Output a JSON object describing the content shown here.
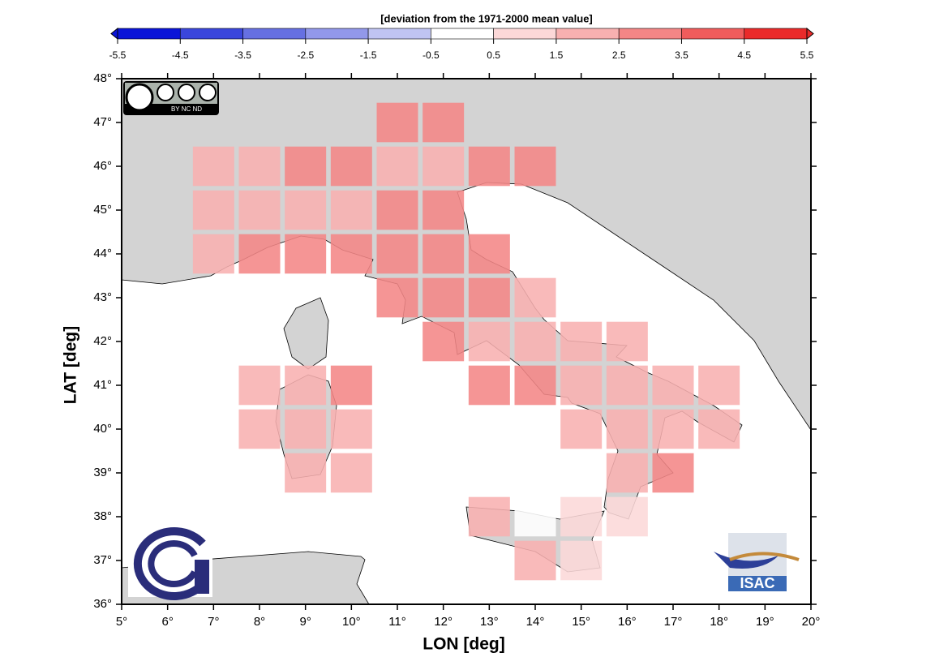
{
  "chart_data": {
    "type": "grid-map",
    "title": "[deviation from the 1971-2000 mean value]",
    "x_label": "LON [deg]",
    "y_label": "LAT [deg]",
    "xlim": [
      5,
      20
    ],
    "ylim": [
      36,
      48
    ],
    "xticks": [
      {
        "value": 5,
        "label": "5°"
      },
      {
        "value": 6,
        "label": "6°"
      },
      {
        "value": 7,
        "label": "7°"
      },
      {
        "value": 8,
        "label": "8°"
      },
      {
        "value": 9,
        "label": "9°"
      },
      {
        "value": 10,
        "label": "10°"
      },
      {
        "value": 11,
        "label": "11°"
      },
      {
        "value": 12,
        "label": "12°"
      },
      {
        "value": 13,
        "label": "13°"
      },
      {
        "value": 14,
        "label": "14°"
      },
      {
        "value": 15,
        "label": "15°"
      },
      {
        "value": 16,
        "label": "16°"
      },
      {
        "value": 17,
        "label": "17°"
      },
      {
        "value": 18,
        "label": "18°"
      },
      {
        "value": 19,
        "label": "19°"
      },
      {
        "value": 20,
        "label": "20°"
      }
    ],
    "yticks": [
      {
        "value": 36,
        "label": "36°"
      },
      {
        "value": 37,
        "label": "37°"
      },
      {
        "value": 38,
        "label": "38°"
      },
      {
        "value": 39,
        "label": "39°"
      },
      {
        "value": 40,
        "label": "40°"
      },
      {
        "value": 41,
        "label": "41°"
      },
      {
        "value": 42,
        "label": "42°"
      },
      {
        "value": 43,
        "label": "43°"
      },
      {
        "value": 44,
        "label": "44°"
      },
      {
        "value": 45,
        "label": "45°"
      },
      {
        "value": 46,
        "label": "46°"
      },
      {
        "value": 47,
        "label": "47°"
      },
      {
        "value": 48,
        "label": "48°"
      }
    ],
    "colorbar": {
      "ticks": [
        -5.5,
        -4.5,
        -3.5,
        -2.5,
        -1.5,
        -0.5,
        0.5,
        1.5,
        2.5,
        3.5,
        4.5,
        5.5
      ],
      "colors": [
        "#0a14d8",
        "#3a46dc",
        "#6670e2",
        "#9298ea",
        "#c0c4f2",
        "#ffffff",
        "#fcd8d8",
        "#f8b0b0",
        "#f48686",
        "#f05c5c",
        "#ea2a2a"
      ]
    },
    "cells": [
      {
        "lon": 11,
        "lat": 47,
        "value": 3
      },
      {
        "lon": 12,
        "lat": 47,
        "value": 3
      },
      {
        "lon": 7,
        "lat": 46,
        "value": 2
      },
      {
        "lon": 8,
        "lat": 46,
        "value": 2
      },
      {
        "lon": 9,
        "lat": 46,
        "value": 3
      },
      {
        "lon": 10,
        "lat": 46,
        "value": 3
      },
      {
        "lon": 11,
        "lat": 46,
        "value": 2
      },
      {
        "lon": 12,
        "lat": 46,
        "value": 2
      },
      {
        "lon": 13,
        "lat": 46,
        "value": 3
      },
      {
        "lon": 14,
        "lat": 46,
        "value": 3
      },
      {
        "lon": 7,
        "lat": 45,
        "value": 2
      },
      {
        "lon": 8,
        "lat": 45,
        "value": 2
      },
      {
        "lon": 9,
        "lat": 45,
        "value": 2
      },
      {
        "lon": 10,
        "lat": 45,
        "value": 2
      },
      {
        "lon": 11,
        "lat": 45,
        "value": 3
      },
      {
        "lon": 12,
        "lat": 45,
        "value": 3
      },
      {
        "lon": 7,
        "lat": 44,
        "value": 2
      },
      {
        "lon": 8,
        "lat": 44,
        "value": 3
      },
      {
        "lon": 9,
        "lat": 44,
        "value": 3
      },
      {
        "lon": 10,
        "lat": 44,
        "value": 3
      },
      {
        "lon": 11,
        "lat": 44,
        "value": 3
      },
      {
        "lon": 12,
        "lat": 44,
        "value": 3
      },
      {
        "lon": 13,
        "lat": 44,
        "value": 3
      },
      {
        "lon": 11,
        "lat": 43,
        "value": 3
      },
      {
        "lon": 12,
        "lat": 43,
        "value": 3
      },
      {
        "lon": 13,
        "lat": 43,
        "value": 3
      },
      {
        "lon": 14,
        "lat": 43,
        "value": 2
      },
      {
        "lon": 12,
        "lat": 42,
        "value": 3
      },
      {
        "lon": 13,
        "lat": 42,
        "value": 2
      },
      {
        "lon": 14,
        "lat": 42,
        "value": 2
      },
      {
        "lon": 15,
        "lat": 42,
        "value": 2
      },
      {
        "lon": 16,
        "lat": 42,
        "value": 2
      },
      {
        "lon": 8,
        "lat": 41,
        "value": 2
      },
      {
        "lon": 9,
        "lat": 41,
        "value": 2
      },
      {
        "lon": 10,
        "lat": 41,
        "value": 3
      },
      {
        "lon": 13,
        "lat": 41,
        "value": 3
      },
      {
        "lon": 14,
        "lat": 41,
        "value": 3
      },
      {
        "lon": 15,
        "lat": 41,
        "value": 2
      },
      {
        "lon": 16,
        "lat": 41,
        "value": 2
      },
      {
        "lon": 17,
        "lat": 41,
        "value": 2
      },
      {
        "lon": 18,
        "lat": 41,
        "value": 2
      },
      {
        "lon": 8,
        "lat": 40,
        "value": 2
      },
      {
        "lon": 9,
        "lat": 40,
        "value": 2
      },
      {
        "lon": 10,
        "lat": 40,
        "value": 2
      },
      {
        "lon": 15,
        "lat": 40,
        "value": 2
      },
      {
        "lon": 16,
        "lat": 40,
        "value": 2
      },
      {
        "lon": 17,
        "lat": 40,
        "value": 2
      },
      {
        "lon": 18,
        "lat": 40,
        "value": 2
      },
      {
        "lon": 9,
        "lat": 39,
        "value": 2
      },
      {
        "lon": 10,
        "lat": 39,
        "value": 2
      },
      {
        "lon": 16,
        "lat": 39,
        "value": 2
      },
      {
        "lon": 17,
        "lat": 39,
        "value": 3
      },
      {
        "lon": 13,
        "lat": 38,
        "value": 2
      },
      {
        "lon": 14,
        "lat": 38,
        "value": 0
      },
      {
        "lon": 15,
        "lat": 38,
        "value": 1
      },
      {
        "lon": 16,
        "lat": 38,
        "value": 1
      },
      {
        "lon": 14,
        "lat": 37,
        "value": 2
      },
      {
        "lon": 15,
        "lat": 37,
        "value": 1
      }
    ]
  },
  "logos": {
    "license": "BY  NC  ND",
    "institute": "ISAC"
  }
}
